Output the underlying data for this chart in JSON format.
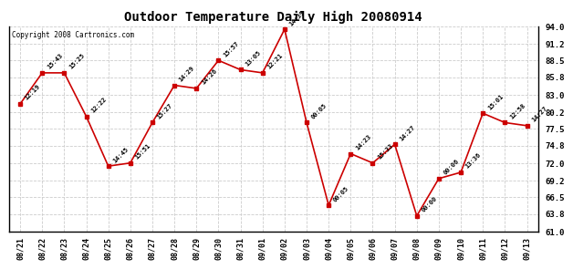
{
  "title": "Outdoor Temperature Daily High 20080914",
  "copyright": "Copyright 2008 Cartronics.com",
  "x_labels": [
    "08/21",
    "08/22",
    "08/23",
    "08/24",
    "08/25",
    "08/26",
    "08/27",
    "08/28",
    "08/29",
    "08/30",
    "08/31",
    "09/01",
    "09/02",
    "09/03",
    "09/04",
    "09/05",
    "09/06",
    "09/07",
    "09/08",
    "09/09",
    "09/10",
    "09/11",
    "09/12",
    "09/13"
  ],
  "y_values": [
    81.5,
    86.5,
    86.5,
    79.5,
    71.5,
    72.0,
    78.5,
    84.5,
    84.0,
    88.5,
    87.0,
    86.5,
    93.5,
    78.5,
    65.2,
    73.5,
    72.0,
    75.0,
    63.5,
    69.5,
    70.5,
    80.0,
    78.5,
    78.0
  ],
  "point_labels": [
    "12:19",
    "15:43",
    "15:25",
    "12:22",
    "14:45",
    "15:51",
    "15:27",
    "14:29",
    "14:26",
    "15:57",
    "13:05",
    "12:21",
    "14:39",
    "00:05",
    "00:05",
    "14:23",
    "15:33",
    "14:27",
    "00:00",
    "00:06",
    "13:36",
    "15:01",
    "12:58",
    "14:27"
  ],
  "line_color": "#cc0000",
  "marker_color": "#cc0000",
  "background_color": "#ffffff",
  "grid_color": "#cccccc",
  "y_min": 61.0,
  "y_max": 94.0,
  "y_ticks": [
    61.0,
    63.8,
    66.5,
    69.2,
    72.0,
    74.8,
    77.5,
    80.2,
    83.0,
    85.8,
    88.5,
    91.2,
    94.0
  ]
}
